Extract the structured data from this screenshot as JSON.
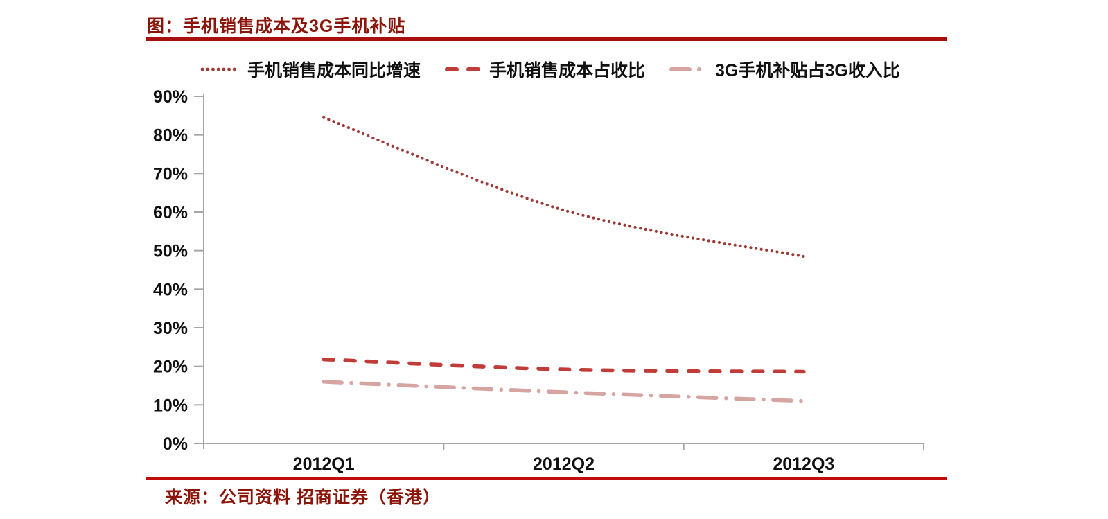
{
  "title": "图：手机销售成本及3G手机补贴",
  "source": "来源：公司资料 招商证券（香港）",
  "colors": {
    "title_text": "#8B1509",
    "rule_top": "#A8100E",
    "rule_bottom": "#C00D0B",
    "axis_gray": "#A6A6A6",
    "series1": "#9E3A36",
    "series2": "#C03C38",
    "series3": "#D6A4A1"
  },
  "chart_data": {
    "type": "line",
    "title": "图：手机销售成本及3G手机补贴",
    "categories": [
      "2012Q1",
      "2012Q2",
      "2012Q3"
    ],
    "series": [
      {
        "name": "手机销售成本同比增速",
        "style": "dotted",
        "color": "#9E3A36",
        "values": [
          84.5,
          60.5,
          48.5
        ]
      },
      {
        "name": "手机销售成本占收比",
        "style": "dashed",
        "color": "#C03C38",
        "values": [
          21.8,
          19.2,
          18.6
        ]
      },
      {
        "name": "3G手机补贴占3G收入比",
        "style": "dashdot",
        "color": "#D6A4A1",
        "values": [
          16.0,
          13.3,
          11.0
        ]
      }
    ],
    "ylim": [
      0,
      90
    ],
    "ytick_step": 10,
    "ytick_labels": [
      "0%",
      "10%",
      "20%",
      "30%",
      "40%",
      "50%",
      "60%",
      "70%",
      "80%",
      "90%"
    ],
    "xlabel": "",
    "ylabel": "",
    "grid": false,
    "legend_position": "top"
  }
}
